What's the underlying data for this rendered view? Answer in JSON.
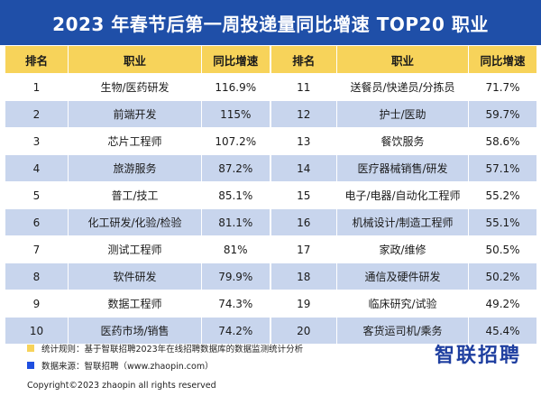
{
  "title": "2023 年春节后第一周投递量同比增速 TOP20 职业",
  "columns": {
    "rank": "排名",
    "job": "职业",
    "growth": "同比增速"
  },
  "left_rows": [
    {
      "rank": "1",
      "job": "生物/医药研发",
      "growth": "116.9%"
    },
    {
      "rank": "2",
      "job": "前端开发",
      "growth": "115%"
    },
    {
      "rank": "3",
      "job": "芯片工程师",
      "growth": "107.2%"
    },
    {
      "rank": "4",
      "job": "旅游服务",
      "growth": "87.2%"
    },
    {
      "rank": "5",
      "job": "普工/技工",
      "growth": "85.1%"
    },
    {
      "rank": "6",
      "job": "化工研发/化验/检验",
      "growth": "81.1%"
    },
    {
      "rank": "7",
      "job": "测试工程师",
      "growth": "81%"
    },
    {
      "rank": "8",
      "job": "软件研发",
      "growth": "79.9%"
    },
    {
      "rank": "9",
      "job": "数据工程师",
      "growth": "74.3%"
    },
    {
      "rank": "10",
      "job": "医药市场/销售",
      "growth": "74.2%"
    }
  ],
  "right_rows": [
    {
      "rank": "11",
      "job": "送餐员/快递员/分拣员",
      "growth": "71.7%"
    },
    {
      "rank": "12",
      "job": "护士/医助",
      "growth": "59.7%"
    },
    {
      "rank": "13",
      "job": "餐饮服务",
      "growth": "58.6%"
    },
    {
      "rank": "14",
      "job": "医疗器械销售/研发",
      "growth": "57.1%"
    },
    {
      "rank": "15",
      "job": "电子/电器/自动化工程师",
      "growth": "55.2%"
    },
    {
      "rank": "16",
      "job": "机械设计/制造工程师",
      "growth": "55.1%"
    },
    {
      "rank": "17",
      "job": "家政/维修",
      "growth": "50.5%"
    },
    {
      "rank": "18",
      "job": "通信及硬件研发",
      "growth": "50.2%"
    },
    {
      "rank": "19",
      "job": "临床研究/试验",
      "growth": "49.2%"
    },
    {
      "rank": "20",
      "job": "客货运司机/乘务",
      "growth": "45.4%"
    }
  ],
  "footer": {
    "note_stats": "统计规则：基于智联招聘2023年在线招聘数据库的数据监测统计分析",
    "note_source": "数据来源：智联招聘（www.zhaopin.com）",
    "copyright": "Copyright©2023 zhaopin all rights reserved",
    "logo_text": "智联招聘"
  },
  "colors": {
    "title_bg": "#1f4fa8",
    "header_bg": "#f7d35a",
    "stripe_bg": "#c8d5ed",
    "swatch_yellow": "#f7d35a",
    "swatch_blue": "#1f4fe0"
  }
}
